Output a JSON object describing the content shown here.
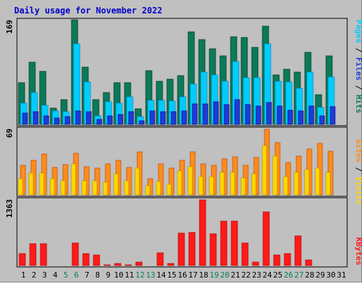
{
  "chart_data": {
    "type": "bar",
    "title": "Daily usage for November 2022",
    "categories": [
      "1",
      "2",
      "3",
      "4",
      "5",
      "6",
      "7",
      "8",
      "9",
      "10",
      "11",
      "12",
      "13",
      "14",
      "15",
      "16",
      "17",
      "18",
      "19",
      "20",
      "21",
      "22",
      "23",
      "24",
      "25",
      "26",
      "27",
      "28",
      "29",
      "30",
      "31"
    ],
    "weekend_days": [
      "5",
      "6",
      "12",
      "13",
      "19",
      "20",
      "26",
      "27"
    ],
    "panels": [
      {
        "name": "pages-files-hits",
        "ymax_label": "169",
        "ymax": 169,
        "legend": [
          "Pages",
          "Files",
          "Hits"
        ],
        "series": [
          {
            "name": "Hits",
            "color": "#0a7a5a",
            "values": [
              67,
              101,
              86,
              26,
              40,
              169,
              93,
              40,
              51,
              67,
              67,
              25,
              87,
              70,
              73,
              79,
              150,
              137,
              122,
              111,
              142,
              140,
              125,
              159,
              80,
              89,
              84,
              117,
              48,
              111,
              0
            ]
          },
          {
            "name": "Files",
            "color": "#00ccff",
            "values": [
              34,
              51,
              31,
              22,
              21,
              130,
              68,
              14,
              36,
              34,
              44,
              12,
              39,
              39,
              38,
              45,
              65,
              84,
              80,
              70,
              102,
              75,
              75,
              130,
              70,
              69,
              58,
              84,
              27,
              77,
              0
            ]
          },
          {
            "name": "Pages",
            "color": "#1c3cd6",
            "values": [
              18,
              20,
              14,
              10,
              12,
              22,
              20,
              8,
              14,
              16,
              20,
              6,
              22,
              20,
              20,
              22,
              33,
              33,
              36,
              32,
              40,
              32,
              30,
              35,
              30,
              23,
              22,
              30,
              14,
              28,
              0
            ]
          }
        ]
      },
      {
        "name": "sites-visits",
        "ymax_label": "69",
        "ymax": 69,
        "legend": [
          "Sites",
          "Visits"
        ],
        "series": [
          {
            "name": "Visits",
            "color": "#ff8c1a",
            "values": [
              31,
              36,
              43,
              29,
              32,
              44,
              30,
              28,
              33,
              36,
              29,
              45,
              17,
              33,
              28,
              36,
              45,
              33,
              31,
              38,
              40,
              31,
              39,
              69,
              55,
              34,
              41,
              48,
              54,
              46,
              0
            ]
          },
          {
            "name": "Sites",
            "color": "#ffd700",
            "values": [
              17,
              23,
              23,
              17,
              15,
              33,
              15,
              15,
              13,
              22,
              15,
              28,
              10,
              14,
              11,
              25,
              30,
              19,
              19,
              24,
              24,
              18,
              22,
              52,
              41,
              19,
              24,
              27,
              28,
              24,
              0
            ]
          }
        ]
      },
      {
        "name": "kbytes",
        "ymax_label": "1363",
        "ymax": 1363,
        "legend": [
          "KBytes"
        ],
        "series": [
          {
            "name": "KBytes",
            "color": "#ff1a1a",
            "values": [
              248,
              459,
              459,
              0,
              0,
              474,
              244,
              226,
              12,
              41,
              11,
              78,
              0,
              262,
              41,
              669,
              690,
              1363,
              658,
              922,
              922,
              468,
              68,
              1108,
              224,
              256,
              612,
              124,
              0,
              0,
              0
            ]
          }
        ]
      }
    ]
  }
}
